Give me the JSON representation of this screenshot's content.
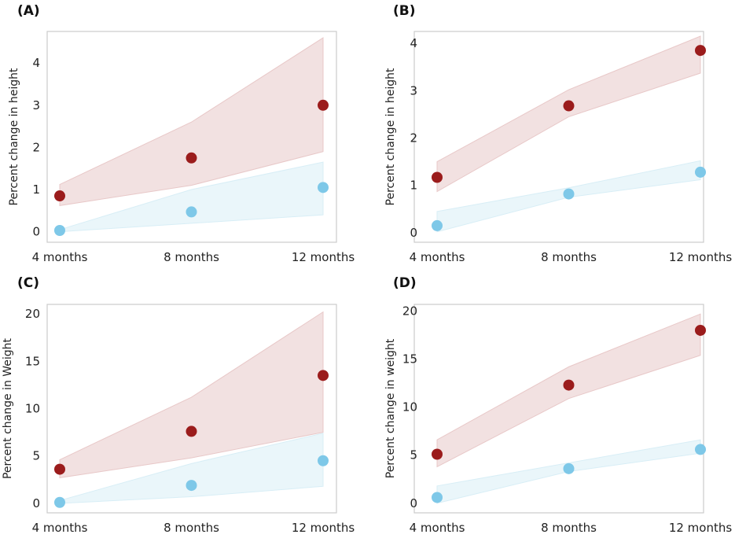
{
  "colors": {
    "group_red": "#9b1c1c",
    "group_blue": "#7ec8e8",
    "band_red": "#e8c8c8",
    "band_blue": "#d8eef6",
    "frame": "#cccccc"
  },
  "chart_data": [
    {
      "panel": "(A)",
      "type": "scatter",
      "categories": [
        "4 months",
        "8 months",
        "12 months"
      ],
      "ylabel": "Percent change in height",
      "xlabel": "",
      "ylim": [
        -0.25,
        4.75
      ],
      "yticks": [
        0,
        1,
        2,
        3,
        4
      ],
      "series": [
        {
          "name": "red",
          "values": [
            0.85,
            1.75,
            3.0
          ],
          "band_low": [
            0.62,
            1.1,
            1.9
          ],
          "band_high": [
            1.12,
            2.6,
            4.6
          ]
        },
        {
          "name": "blue",
          "values": [
            0.03,
            0.47,
            1.05
          ],
          "band_low": [
            0.0,
            0.2,
            0.4
          ],
          "band_high": [
            0.05,
            1.0,
            1.65
          ]
        }
      ]
    },
    {
      "panel": "(B)",
      "type": "scatter",
      "categories": [
        "4 months",
        "8 months",
        "12 months"
      ],
      "ylabel": "Percent change in height",
      "xlabel": "",
      "ylim": [
        -0.2,
        4.25
      ],
      "yticks": [
        0,
        1,
        2,
        3,
        4
      ],
      "series": [
        {
          "name": "red",
          "values": [
            1.17,
            2.68,
            3.85
          ],
          "band_low": [
            0.87,
            2.45,
            3.37
          ],
          "band_high": [
            1.5,
            3.02,
            4.15
          ]
        },
        {
          "name": "blue",
          "values": [
            0.15,
            0.82,
            1.28
          ],
          "band_low": [
            0.02,
            0.75,
            1.12
          ],
          "band_high": [
            0.45,
            0.95,
            1.52
          ]
        }
      ]
    },
    {
      "panel": "(C)",
      "type": "scatter",
      "categories": [
        "4 months",
        "8 months",
        "12 months"
      ],
      "ylabel": "Percent change in Weight",
      "xlabel": "",
      "ylim": [
        -1.0,
        21.0
      ],
      "yticks": [
        0,
        5,
        10,
        15,
        20
      ],
      "series": [
        {
          "name": "red",
          "values": [
            3.6,
            7.6,
            13.5
          ],
          "band_low": [
            2.7,
            4.8,
            7.5
          ],
          "band_high": [
            4.6,
            11.2,
            20.2
          ]
        },
        {
          "name": "blue",
          "values": [
            0.1,
            1.9,
            4.5
          ],
          "band_low": [
            0.0,
            0.7,
            1.8
          ],
          "band_high": [
            0.3,
            4.2,
            7.4
          ]
        }
      ]
    },
    {
      "panel": "(D)",
      "type": "scatter",
      "categories": [
        "4 months",
        "8 months",
        "12 months"
      ],
      "ylabel": "Percent change in weight",
      "xlabel": "",
      "ylim": [
        -1.0,
        20.7
      ],
      "yticks": [
        0,
        5,
        10,
        15,
        20
      ],
      "series": [
        {
          "name": "red",
          "values": [
            5.1,
            12.3,
            18.0
          ],
          "band_low": [
            3.8,
            10.9,
            15.4
          ],
          "band_high": [
            6.6,
            14.2,
            19.7
          ]
        },
        {
          "name": "blue",
          "values": [
            0.6,
            3.6,
            5.6
          ],
          "band_low": [
            0.0,
            3.3,
            5.2
          ],
          "band_high": [
            1.8,
            4.2,
            6.6
          ]
        }
      ]
    }
  ]
}
